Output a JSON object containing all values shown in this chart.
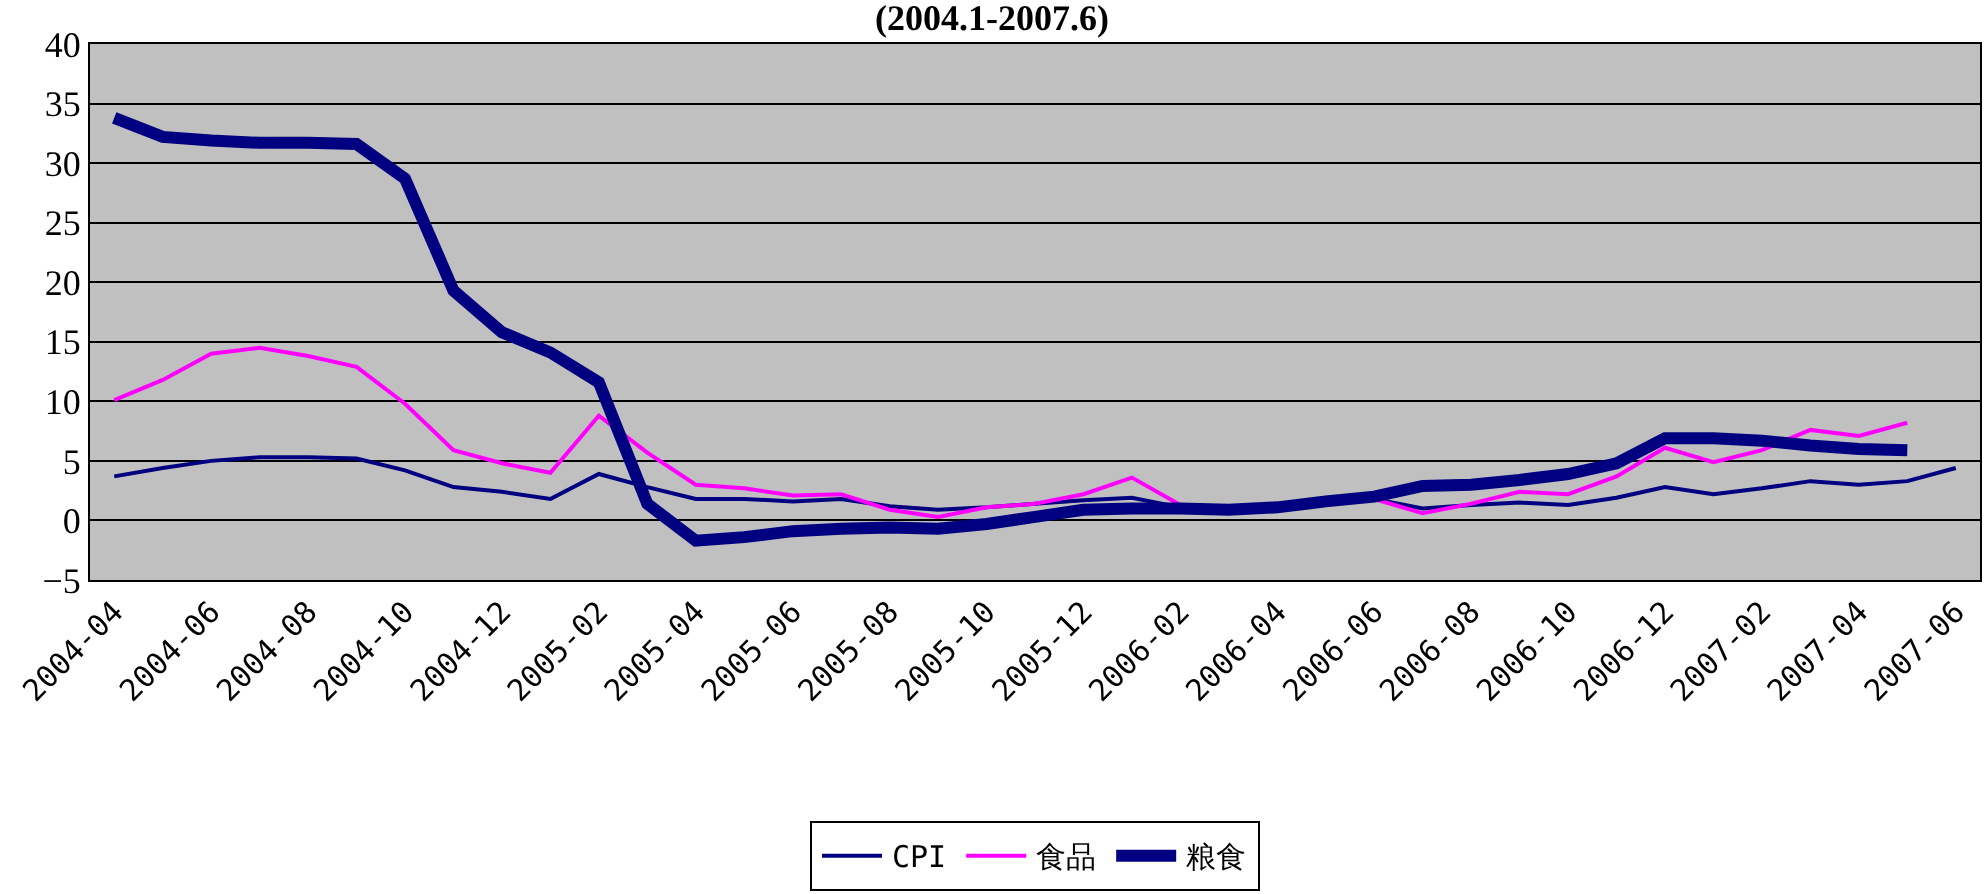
{
  "chart_data": {
    "type": "line",
    "title": "(2004.1-2007.6)",
    "categories": [
      "2004-04",
      null,
      "2004-06",
      null,
      "2004-08",
      null,
      "2004-10",
      null,
      "2004-12",
      null,
      "2005-02",
      null,
      "2005-04",
      null,
      "2005-06",
      null,
      "2005-08",
      null,
      "2005-10",
      null,
      "2005-12",
      null,
      "2006-02",
      null,
      "2006-04",
      null,
      "2006-06",
      null,
      "2006-08",
      null,
      "2006-10",
      null,
      "2006-12",
      null,
      "2007-02",
      null,
      "2007-04",
      null,
      "2007-06"
    ],
    "series": [
      {
        "name": "CPI",
        "color": "#000080",
        "values": [
          3.7,
          4.4,
          5.0,
          5.3,
          5.3,
          5.2,
          4.2,
          2.8,
          2.4,
          1.8,
          3.9,
          2.8,
          1.8,
          1.8,
          1.6,
          1.8,
          1.2,
          0.9,
          1.1,
          1.4,
          1.7,
          1.9,
          1.1,
          1.0,
          1.1,
          1.4,
          1.8,
          1.0,
          1.3,
          1.5,
          1.3,
          1.9,
          2.8,
          2.2,
          2.7,
          3.3,
          3.0,
          3.3,
          4.4
        ]
      },
      {
        "name": "食品",
        "color": "#ff00ff",
        "values": [
          10.1,
          11.8,
          14.0,
          14.5,
          13.8,
          12.9,
          9.8,
          5.9,
          4.8,
          4.0,
          8.8,
          5.7,
          3.0,
          2.7,
          2.1,
          2.2,
          0.9,
          0.3,
          1.1,
          1.4,
          2.2,
          3.6,
          1.3,
          null,
          null,
          null,
          1.8,
          0.6,
          1.4,
          2.4,
          2.2,
          3.7,
          6.1,
          4.9,
          5.9,
          7.6,
          7.1,
          8.2,
          null
        ]
      },
      {
        "name": "粮食",
        "color": "#000080",
        "values": [
          33.8,
          32.2,
          31.9,
          31.7,
          31.7,
          31.6,
          28.7,
          19.3,
          15.8,
          14.1,
          11.6,
          1.4,
          -1.7,
          -1.4,
          -0.9,
          -0.7,
          -0.6,
          -0.7,
          -0.3,
          0.3,
          0.9,
          1.0,
          1.0,
          0.9,
          1.1,
          1.6,
          2.0,
          2.9,
          3.0,
          3.4,
          3.9,
          4.8,
          6.9,
          6.9,
          6.7,
          6.3,
          6.0,
          5.9,
          null
        ]
      }
    ],
    "ylim": [
      -5,
      40
    ],
    "yticks": [
      -5,
      0,
      5,
      10,
      15,
      20,
      25,
      30,
      35,
      40
    ],
    "grid": "y",
    "legend": "bottom",
    "marker": "none",
    "line_style": "solid"
  }
}
